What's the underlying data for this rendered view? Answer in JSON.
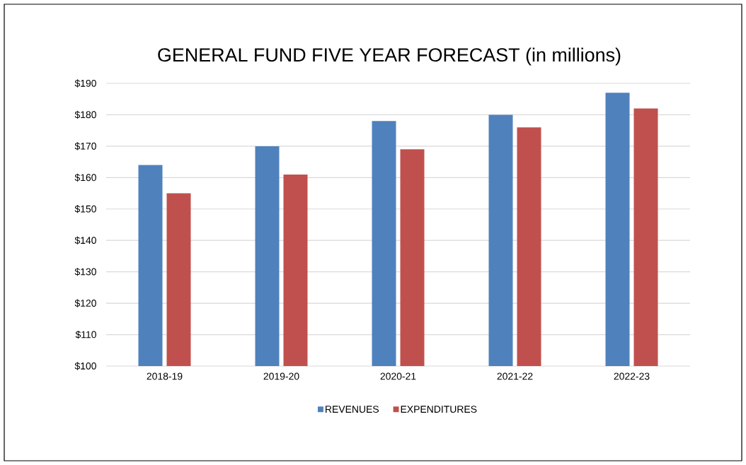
{
  "chart_data": {
    "type": "bar",
    "title": "GENERAL FUND FIVE YEAR FORECAST (in millions)",
    "categories": [
      "2018-19",
      "2019-20",
      "2020-21",
      "2021-22",
      "2022-23"
    ],
    "series": [
      {
        "name": "REVENUES",
        "color": "#4f81bd",
        "values": [
          164,
          170,
          178,
          180,
          187
        ]
      },
      {
        "name": "EXPENDITURES",
        "color": "#c0504d",
        "values": [
          155,
          161,
          169,
          176,
          182
        ]
      }
    ],
    "ylim": [
      100,
      190
    ],
    "yticks": [
      {
        "value": 100,
        "label": "$100"
      },
      {
        "value": 110,
        "label": "$110"
      },
      {
        "value": 120,
        "label": "$120"
      },
      {
        "value": 130,
        "label": "$130"
      },
      {
        "value": 140,
        "label": "$140"
      },
      {
        "value": 150,
        "label": "$150"
      },
      {
        "value": 160,
        "label": "$160"
      },
      {
        "value": 170,
        "label": "$170"
      },
      {
        "value": 180,
        "label": "$180"
      },
      {
        "value": 190,
        "label": "$190"
      }
    ],
    "grid": "y",
    "legend": "bottom"
  }
}
